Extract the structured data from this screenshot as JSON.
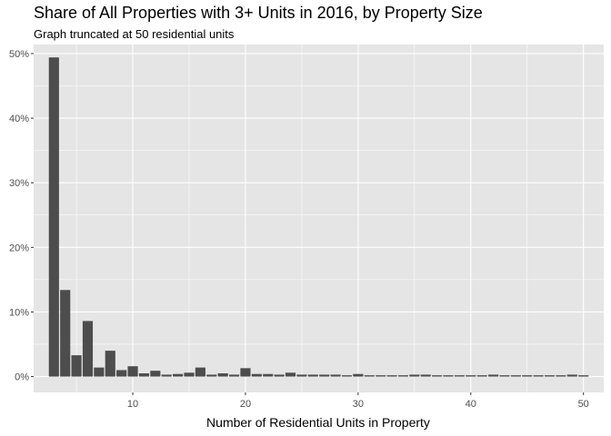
{
  "chart_data": {
    "type": "bar",
    "title": "Share of All Properties with 3+ Units in 2016, by Property Size",
    "subtitle": "Graph truncated at 50 residential units",
    "xlabel": "Number of Residential Units in Property",
    "ylabel": "",
    "xlim": [
      1.2,
      51.8
    ],
    "ylim": [
      -0.0245,
      0.514
    ],
    "x_ticks": [
      10,
      20,
      30,
      40,
      50
    ],
    "x_tick_labels": [
      "10",
      "20",
      "30",
      "40",
      "50"
    ],
    "y_ticks": [
      0,
      0.1,
      0.2,
      0.3,
      0.4,
      0.5
    ],
    "y_tick_labels": [
      "0%",
      "10%",
      "20%",
      "30%",
      "40%",
      "50%"
    ],
    "grid": true,
    "bar_color": "#4d4d4d",
    "panel_color": "#e5e5e5",
    "grid_color": "#ffffff",
    "x": [
      3,
      4,
      5,
      6,
      7,
      8,
      9,
      10,
      11,
      12,
      13,
      14,
      15,
      16,
      17,
      18,
      19,
      20,
      21,
      22,
      23,
      24,
      25,
      26,
      27,
      28,
      29,
      30,
      31,
      32,
      33,
      34,
      35,
      36,
      37,
      38,
      39,
      40,
      41,
      42,
      43,
      44,
      45,
      46,
      47,
      48,
      49,
      50
    ],
    "values": [
      0.494,
      0.134,
      0.033,
      0.086,
      0.014,
      0.04,
      0.01,
      0.016,
      0.005,
      0.009,
      0.003,
      0.004,
      0.006,
      0.014,
      0.003,
      0.005,
      0.003,
      0.013,
      0.004,
      0.004,
      0.003,
      0.006,
      0.003,
      0.003,
      0.003,
      0.003,
      0.002,
      0.004,
      0.002,
      0.002,
      0.002,
      0.002,
      0.003,
      0.003,
      0.002,
      0.002,
      0.002,
      0.002,
      0.002,
      0.003,
      0.002,
      0.002,
      0.002,
      0.002,
      0.002,
      0.002,
      0.003,
      0.002
    ]
  }
}
